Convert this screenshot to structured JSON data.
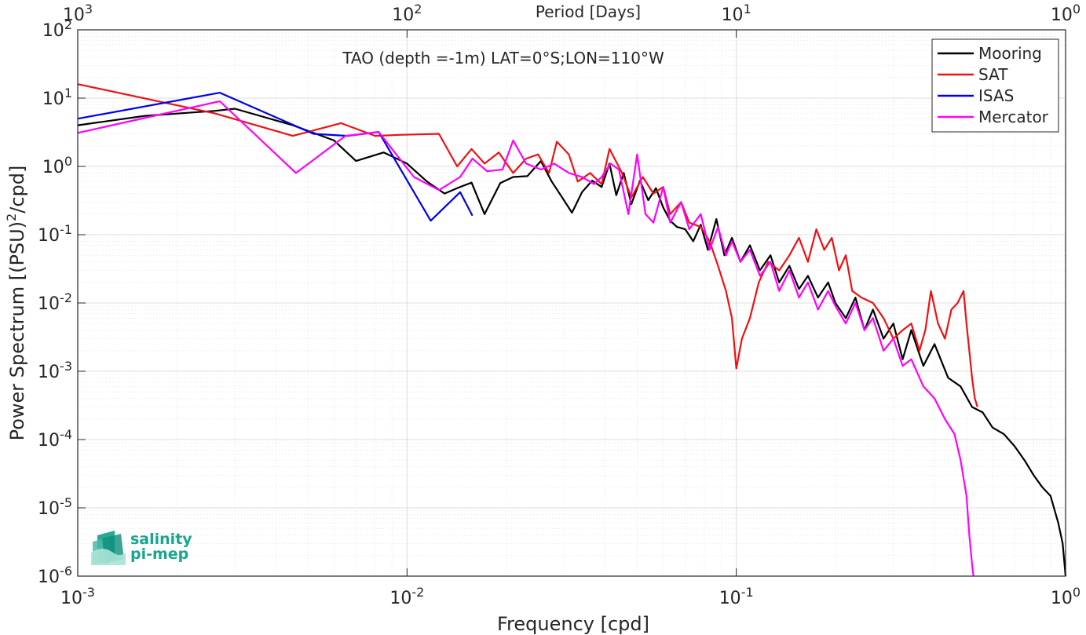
{
  "chart_data": {
    "type": "line",
    "title": "TAO (depth =-1m) LAT=0°S;LON=110°W",
    "xlabel": "Frequency [cpd]",
    "ylabel": "Power Spectrum [(PSU)²/cpd]",
    "ylabel_main": "Power Spectrum [(PSU)",
    "ylabel_sup": "2",
    "ylabel_tail": "/cpd]",
    "top_xlabel": "Period [Days]",
    "xscale": "log",
    "yscale": "log",
    "xlim": [
      0.001,
      1
    ],
    "ylim": [
      1e-06,
      100
    ],
    "grid": true,
    "legend_position": "top-right",
    "x_ticks": [
      {
        "value": 0.001,
        "base": "10",
        "exp": "-3"
      },
      {
        "value": 0.01,
        "base": "10",
        "exp": "-2"
      },
      {
        "value": 0.1,
        "base": "10",
        "exp": "-1"
      },
      {
        "value": 1,
        "base": "10",
        "exp": "0"
      }
    ],
    "y_ticks": [
      {
        "value": 1e-06,
        "base": "10",
        "exp": "-6"
      },
      {
        "value": 1e-05,
        "base": "10",
        "exp": "-5"
      },
      {
        "value": 0.0001,
        "base": "10",
        "exp": "-4"
      },
      {
        "value": 0.001,
        "base": "10",
        "exp": "-3"
      },
      {
        "value": 0.01,
        "base": "10",
        "exp": "-2"
      },
      {
        "value": 0.1,
        "base": "10",
        "exp": "-1"
      },
      {
        "value": 1,
        "base": "10",
        "exp": "0"
      },
      {
        "value": 10,
        "base": "10",
        "exp": "1"
      },
      {
        "value": 100,
        "base": "10",
        "exp": "2"
      }
    ],
    "top_ticks": [
      {
        "value": 1000,
        "base": "10",
        "exp": "3"
      },
      {
        "value": 100,
        "base": "10",
        "exp": "2"
      },
      {
        "value": 10,
        "base": "10",
        "exp": "1"
      },
      {
        "value": 1,
        "base": "10",
        "exp": "0"
      }
    ],
    "series": [
      {
        "name": "Mooring",
        "color": "#000000",
        "points": [
          [
            0.001,
            4.0
          ],
          [
            0.0016,
            5.5
          ],
          [
            0.0026,
            6.5
          ],
          [
            0.003,
            7.0
          ],
          [
            0.0045,
            4.0
          ],
          [
            0.006,
            2.4
          ],
          [
            0.007,
            1.2
          ],
          [
            0.0085,
            1.6
          ],
          [
            0.01,
            1.1
          ],
          [
            0.0115,
            0.6
          ],
          [
            0.013,
            0.4
          ],
          [
            0.0142,
            0.48
          ],
          [
            0.0157,
            0.58
          ],
          [
            0.0172,
            0.2
          ],
          [
            0.0192,
            0.57
          ],
          [
            0.021,
            0.7
          ],
          [
            0.0232,
            0.72
          ],
          [
            0.0255,
            1.2
          ],
          [
            0.0275,
            0.6
          ],
          [
            0.0296,
            0.35
          ],
          [
            0.0317,
            0.21
          ],
          [
            0.034,
            0.42
          ],
          [
            0.0365,
            0.62
          ],
          [
            0.039,
            0.5
          ],
          [
            0.0412,
            1.1
          ],
          [
            0.0432,
            0.38
          ],
          [
            0.0455,
            0.8
          ],
          [
            0.048,
            0.28
          ],
          [
            0.051,
            0.62
          ],
          [
            0.054,
            0.32
          ],
          [
            0.057,
            0.48
          ],
          [
            0.06,
            0.25
          ],
          [
            0.063,
            0.16
          ],
          [
            0.066,
            0.13
          ],
          [
            0.07,
            0.12
          ],
          [
            0.074,
            0.08
          ],
          [
            0.078,
            0.14
          ],
          [
            0.082,
            0.06
          ],
          [
            0.087,
            0.17
          ],
          [
            0.092,
            0.05
          ],
          [
            0.097,
            0.09
          ],
          [
            0.103,
            0.04
          ],
          [
            0.11,
            0.07
          ],
          [
            0.118,
            0.03
          ],
          [
            0.127,
            0.05
          ],
          [
            0.135,
            0.02
          ],
          [
            0.145,
            0.035
          ],
          [
            0.155,
            0.016
          ],
          [
            0.165,
            0.025
          ],
          [
            0.177,
            0.012
          ],
          [
            0.19,
            0.02
          ],
          [
            0.2,
            0.01
          ],
          [
            0.215,
            0.006
          ],
          [
            0.23,
            0.012
          ],
          [
            0.245,
            0.004
          ],
          [
            0.26,
            0.008
          ],
          [
            0.28,
            0.003
          ],
          [
            0.3,
            0.005
          ],
          [
            0.32,
            0.0015
          ],
          [
            0.34,
            0.004
          ],
          [
            0.37,
            0.0012
          ],
          [
            0.4,
            0.0025
          ],
          [
            0.44,
            0.0008
          ],
          [
            0.48,
            0.0006
          ],
          [
            0.52,
            0.0003
          ],
          [
            0.56,
            0.00025
          ],
          [
            0.6,
            0.00015
          ],
          [
            0.65,
            0.00012
          ],
          [
            0.7,
            8e-05
          ],
          [
            0.75,
            5e-05
          ],
          [
            0.8,
            3e-05
          ],
          [
            0.85,
            2e-05
          ],
          [
            0.9,
            1.5e-05
          ],
          [
            0.95,
            6e-06
          ],
          [
            0.98,
            3e-06
          ],
          [
            1.0,
            1e-06
          ]
        ]
      },
      {
        "name": "SAT",
        "color": "#ee1111",
        "points": [
          [
            0.001,
            16
          ],
          [
            0.0026,
            6.0
          ],
          [
            0.0045,
            2.8
          ],
          [
            0.0063,
            4.3
          ],
          [
            0.008,
            2.8
          ],
          [
            0.0095,
            2.9
          ],
          [
            0.0125,
            3.0
          ],
          [
            0.0142,
            1.0
          ],
          [
            0.0157,
            1.8
          ],
          [
            0.0172,
            1.1
          ],
          [
            0.019,
            1.6
          ],
          [
            0.021,
            0.8
          ],
          [
            0.023,
            1.3
          ],
          [
            0.025,
            1.5
          ],
          [
            0.027,
            0.8
          ],
          [
            0.0285,
            2.3
          ],
          [
            0.031,
            1.5
          ],
          [
            0.033,
            0.6
          ],
          [
            0.036,
            0.8
          ],
          [
            0.039,
            0.55
          ],
          [
            0.0412,
            1.8
          ],
          [
            0.045,
            0.8
          ],
          [
            0.048,
            0.35
          ],
          [
            0.052,
            0.7
          ],
          [
            0.056,
            0.4
          ],
          [
            0.06,
            0.5
          ],
          [
            0.063,
            0.2
          ],
          [
            0.068,
            0.3
          ],
          [
            0.072,
            0.15
          ],
          [
            0.078,
            0.13
          ],
          [
            0.083,
            0.08
          ],
          [
            0.088,
            0.035
          ],
          [
            0.093,
            0.015
          ],
          [
            0.097,
            0.006
          ],
          [
            0.1,
            0.0011
          ],
          [
            0.104,
            0.003
          ],
          [
            0.11,
            0.006
          ],
          [
            0.117,
            0.02
          ],
          [
            0.125,
            0.04
          ],
          [
            0.135,
            0.03
          ],
          [
            0.145,
            0.05
          ],
          [
            0.155,
            0.09
          ],
          [
            0.165,
            0.04
          ],
          [
            0.175,
            0.12
          ],
          [
            0.185,
            0.06
          ],
          [
            0.195,
            0.09
          ],
          [
            0.205,
            0.03
          ],
          [
            0.215,
            0.05
          ],
          [
            0.225,
            0.015
          ],
          [
            0.24,
            0.012
          ],
          [
            0.26,
            0.01
          ],
          [
            0.28,
            0.006
          ],
          [
            0.3,
            0.003
          ],
          [
            0.32,
            0.004
          ],
          [
            0.34,
            0.005
          ],
          [
            0.36,
            0.002
          ],
          [
            0.375,
            0.004
          ],
          [
            0.39,
            0.015
          ],
          [
            0.41,
            0.005
          ],
          [
            0.43,
            0.003
          ],
          [
            0.45,
            0.008
          ],
          [
            0.47,
            0.01
          ],
          [
            0.49,
            0.015
          ],
          [
            0.5,
            0.005
          ],
          [
            0.51,
            0.002
          ],
          [
            0.52,
            0.0008
          ],
          [
            0.53,
            0.0004
          ],
          [
            0.54,
            0.0003
          ]
        ]
      },
      {
        "name": "ISAS",
        "color": "#0000ee",
        "points": [
          [
            0.001,
            5.0
          ],
          [
            0.0027,
            12
          ],
          [
            0.0052,
            3.0
          ],
          [
            0.0066,
            2.8
          ],
          [
            0.0082,
            3.2
          ],
          [
            0.0118,
            0.16
          ],
          [
            0.0145,
            0.42
          ],
          [
            0.0158,
            0.19
          ]
        ]
      },
      {
        "name": "Mercator",
        "color": "#ff00ff",
        "points": [
          [
            0.001,
            3.1
          ],
          [
            0.0027,
            9.0
          ],
          [
            0.0046,
            0.8
          ],
          [
            0.0065,
            2.8
          ],
          [
            0.0082,
            3.2
          ],
          [
            0.0105,
            0.7
          ],
          [
            0.0125,
            0.45
          ],
          [
            0.0145,
            0.7
          ],
          [
            0.0158,
            1.3
          ],
          [
            0.0175,
            0.85
          ],
          [
            0.0195,
            0.9
          ],
          [
            0.021,
            2.4
          ],
          [
            0.023,
            1.1
          ],
          [
            0.0255,
            0.9
          ],
          [
            0.028,
            1.1
          ],
          [
            0.031,
            0.8
          ],
          [
            0.034,
            0.7
          ],
          [
            0.037,
            0.55
          ],
          [
            0.039,
            0.7
          ],
          [
            0.0415,
            1.1
          ],
          [
            0.044,
            0.9
          ],
          [
            0.047,
            0.2
          ],
          [
            0.05,
            1.5
          ],
          [
            0.053,
            0.2
          ],
          [
            0.056,
            0.15
          ],
          [
            0.06,
            0.5
          ],
          [
            0.063,
            0.15
          ],
          [
            0.068,
            0.3
          ],
          [
            0.072,
            0.12
          ],
          [
            0.078,
            0.2
          ],
          [
            0.083,
            0.06
          ],
          [
            0.088,
            0.13
          ],
          [
            0.093,
            0.05
          ],
          [
            0.097,
            0.08
          ],
          [
            0.103,
            0.04
          ],
          [
            0.11,
            0.06
          ],
          [
            0.118,
            0.025
          ],
          [
            0.127,
            0.04
          ],
          [
            0.135,
            0.015
          ],
          [
            0.145,
            0.03
          ],
          [
            0.155,
            0.012
          ],
          [
            0.165,
            0.02
          ],
          [
            0.177,
            0.008
          ],
          [
            0.19,
            0.015
          ],
          [
            0.2,
            0.009
          ],
          [
            0.215,
            0.005
          ],
          [
            0.23,
            0.01
          ],
          [
            0.245,
            0.004
          ],
          [
            0.26,
            0.006
          ],
          [
            0.28,
            0.002
          ],
          [
            0.3,
            0.003
          ],
          [
            0.32,
            0.0012
          ],
          [
            0.34,
            0.0015
          ],
          [
            0.37,
            0.0006
          ],
          [
            0.4,
            0.0004
          ],
          [
            0.43,
            0.0002
          ],
          [
            0.46,
            0.00012
          ],
          [
            0.48,
            5e-05
          ],
          [
            0.5,
            1.5e-05
          ],
          [
            0.51,
            4e-06
          ],
          [
            0.52,
            1.5e-06
          ],
          [
            0.525,
            1e-06
          ]
        ]
      }
    ]
  },
  "logo": {
    "line1": "salinity",
    "line2": "pi-mep",
    "color": "#1aa58f"
  }
}
